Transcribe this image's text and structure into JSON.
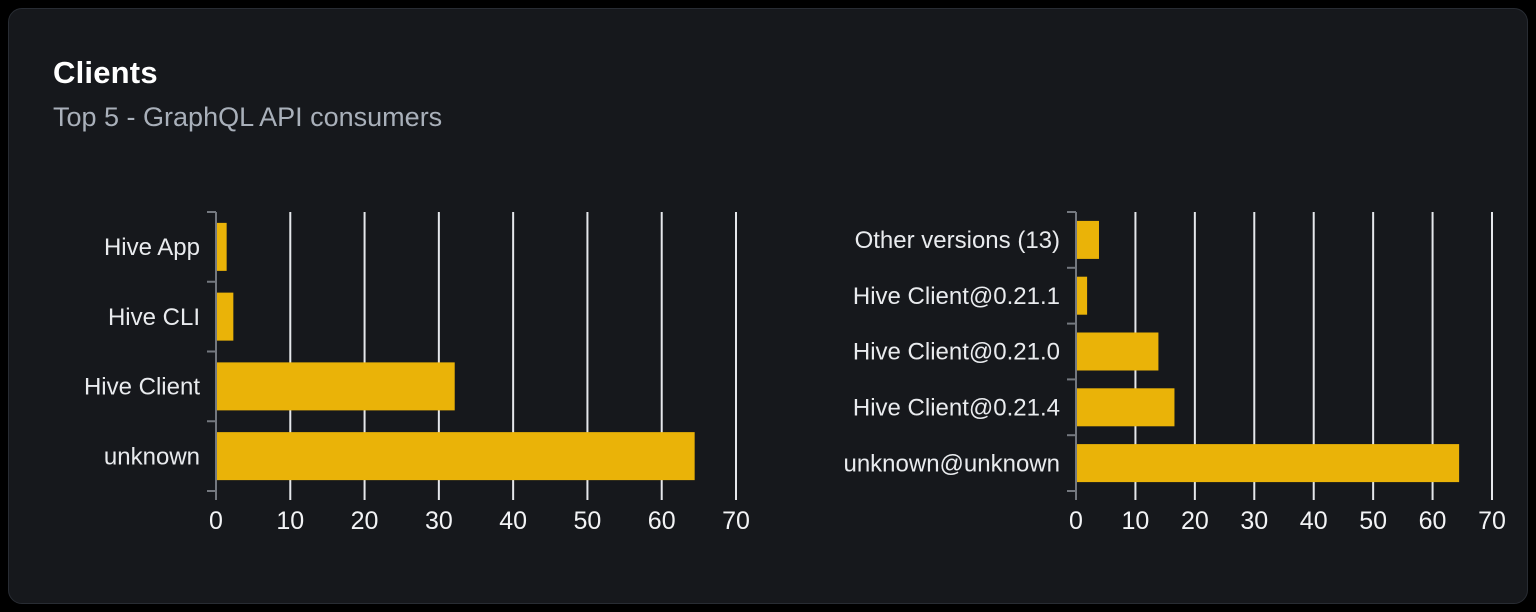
{
  "card": {
    "title": "Clients",
    "subtitle": "Top 5 - GraphQL API consumers"
  },
  "colors": {
    "page_bg": "#000000",
    "card_bg": "#16181c",
    "card_border": "#282c33",
    "title": "#ffffff",
    "subtitle": "#a9b0ba",
    "bar": "#eab308",
    "grid": "#e5e7eb",
    "axis": "#74787f",
    "tick_label": "#f2f3f5",
    "category_label": "#e9ebee"
  },
  "chart_data": [
    {
      "type": "bar",
      "orientation": "horizontal",
      "categories": [
        "Hive App",
        "Hive CLI",
        "Hive Client",
        "unknown"
      ],
      "values": [
        1.3,
        2.2,
        32,
        64.3
      ],
      "xlim": [
        0,
        70
      ],
      "xticks": [
        0,
        10,
        20,
        30,
        40,
        50,
        60,
        70
      ],
      "grid": "vertical",
      "legend": false,
      "xlabel": "",
      "ylabel": ""
    },
    {
      "type": "bar",
      "orientation": "horizontal",
      "categories": [
        "Other versions (13)",
        "Hive Client@0.21.1",
        "Hive Client@0.21.0",
        "Hive Client@0.21.4",
        "unknown@unknown"
      ],
      "values": [
        3.7,
        1.7,
        13.7,
        16.4,
        64.3
      ],
      "xlim": [
        0,
        70
      ],
      "xticks": [
        0,
        10,
        20,
        30,
        40,
        50,
        60,
        70
      ],
      "grid": "vertical",
      "legend": false,
      "xlabel": "",
      "ylabel": ""
    }
  ]
}
